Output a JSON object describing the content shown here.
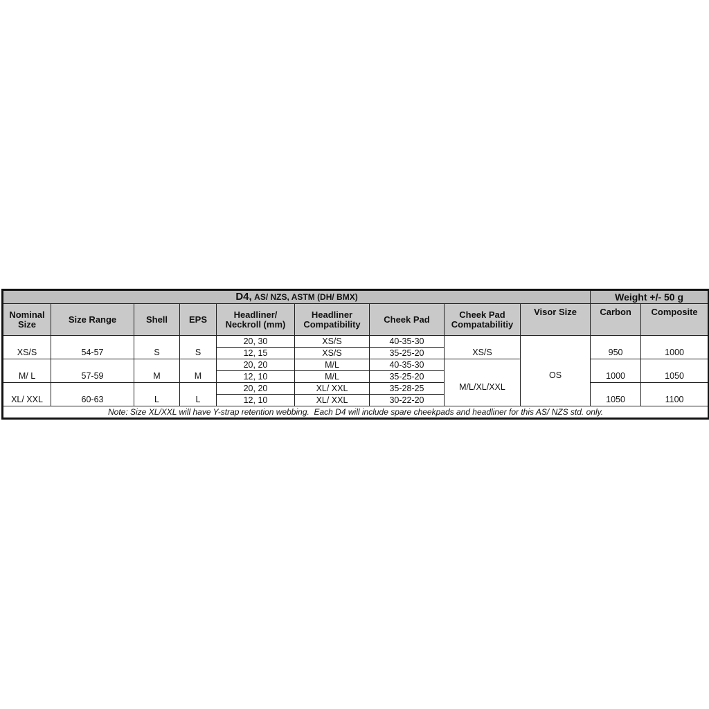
{
  "title": {
    "model": "D4,",
    "standards": "AS/ NZS, ASTM (DH/ BMX)",
    "weight": "Weight +/- 50 g"
  },
  "headers": [
    "Nominal Size",
    "Size Range",
    "Shell",
    "EPS",
    "Headliner/ Neckroll (mm)",
    "Headliner Compatibility",
    "Cheek Pad",
    "Cheek Pad Compatabilitiy",
    "Visor Size",
    "Carbon",
    "Composite"
  ],
  "groups": [
    {
      "nominal": "XS/S",
      "range": "54-57",
      "shell": "S",
      "eps": "S",
      "carbon": "950",
      "composite": "1000",
      "rows": [
        {
          "headliner": "20, 30",
          "compat": "XS/S",
          "cheek": "40-35-30"
        },
        {
          "headliner": "12, 15",
          "compat": "XS/S",
          "cheek": "35-25-20"
        }
      ]
    },
    {
      "nominal": "M/ L",
      "range": "57-59",
      "shell": "M",
      "eps": "M",
      "carbon": "1000",
      "composite": "1050",
      "rows": [
        {
          "headliner": "20, 20",
          "compat": "M/L",
          "cheek": "40-35-30"
        },
        {
          "headliner": "12, 10",
          "compat": "M/L",
          "cheek": "35-25-20"
        }
      ]
    },
    {
      "nominal": "XL/ XXL",
      "range": "60-63",
      "shell": "L",
      "eps": "L",
      "carbon": "1050",
      "composite": "1100",
      "rows": [
        {
          "headliner": "20, 20",
          "compat": "XL/ XXL",
          "cheek": "35-28-25"
        },
        {
          "headliner": "12, 10",
          "compat": "XL/ XXL",
          "cheek": "30-22-20"
        }
      ]
    }
  ],
  "cheek_compat": [
    "XS/S",
    "M/L/XL/XXL"
  ],
  "visor": "OS",
  "note": "Note: Size XL/XXL will have Y-strap retention webbing.  Each D4 will include spare cheekpads and headliner for this AS/ NZS std. only."
}
